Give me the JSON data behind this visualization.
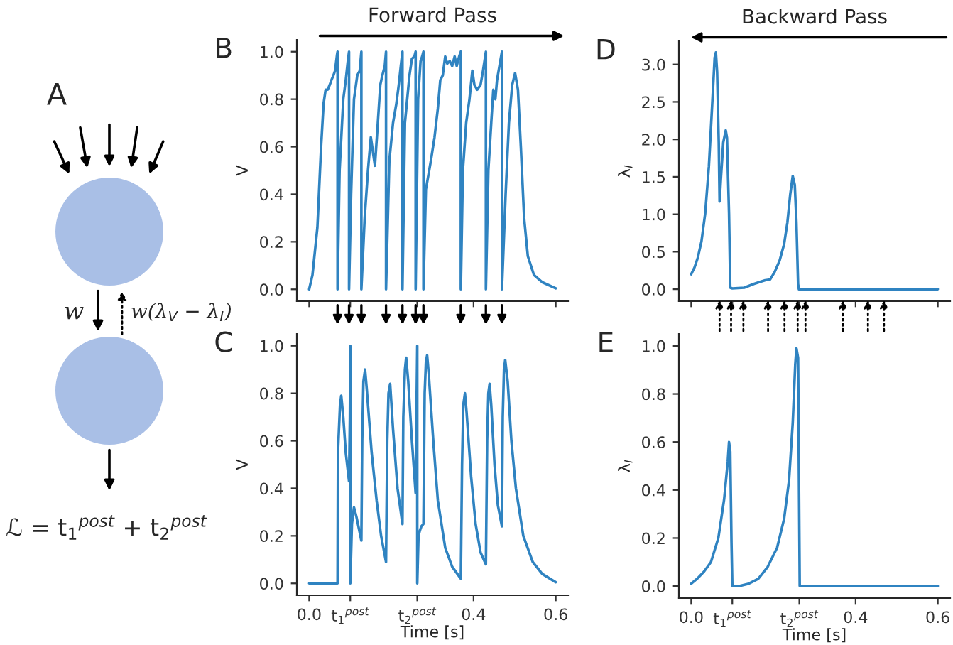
{
  "chart_data": [
    {
      "type": "other",
      "annotations": [
        "A",
        "w",
        "w(λ$_{V}$ − λ$_{I}$)",
        "ℒ = t$_{1}$$^{post}$ + t$_{2}$$^{post}$"
      ]
    },
    {
      "type": "line",
      "title": "Forward Pass",
      "ylabel": "V",
      "annotations": [
        "B"
      ],
      "color": "#2f83c1",
      "tick_labels": "y",
      "xlim": [
        -0.03,
        0.63
      ],
      "ylim": [
        -0.05,
        1.05
      ],
      "yticks": [
        {
          "value": 0,
          "label": "0.0"
        },
        0.2,
        0.4,
        0.6,
        0.8,
        {
          "value": 1,
          "label": "1.0"
        }
      ],
      "xticks": [
        {
          "value": 0.0,
          "label": null
        },
        {
          "value": 0.1,
          "label": null
        },
        {
          "value": 0.263,
          "label": null
        },
        {
          "value": 0.4,
          "label": null
        },
        {
          "value": 0.6,
          "label": null
        }
      ],
      "x": [
        0,
        0.008,
        0.02,
        0.029,
        0.035,
        0.04,
        0.045,
        0.05,
        0.054,
        0.059,
        0.063,
        0.068,
        0.069,
        0.069,
        0.074,
        0.083,
        0.089,
        0.094,
        0.097,
        0.097,
        0.102,
        0.109,
        0.117,
        0.123,
        0.127,
        0.127,
        0.135,
        0.143,
        0.15,
        0.155,
        0.16,
        0.167,
        0.173,
        0.178,
        0.184,
        0.187,
        0.187,
        0.195,
        0.204,
        0.212,
        0.218,
        0.223,
        0.227,
        0.227,
        0.233,
        0.244,
        0.25,
        0.256,
        0.259,
        0.259,
        0.265,
        0.271,
        0.275,
        0.278,
        0.278,
        0.284,
        0.296,
        0.305,
        0.313,
        0.319,
        0.325,
        0.331,
        0.336,
        0.342,
        0.348,
        0.354,
        0.359,
        0.365,
        0.369,
        0.369,
        0.374,
        0.382,
        0.39,
        0.397,
        0.402,
        0.409,
        0.417,
        0.423,
        0.43,
        0.43,
        0.436,
        0.443,
        0.448,
        0.453,
        0.457,
        0.463,
        0.469,
        0.469,
        0.478,
        0.486,
        0.494,
        0.501,
        0.508,
        0.515,
        0.523,
        0.532,
        0.547,
        0.567,
        0.6
      ],
      "values": [
        0,
        0.06,
        0.26,
        0.6,
        0.78,
        0.84,
        0.84,
        0.86,
        0.88,
        0.9,
        0.92,
        0.99,
        1.0,
        0,
        0.5,
        0.8,
        0.88,
        0.96,
        1.0,
        0,
        0.4,
        0.8,
        0.9,
        0.92,
        1.0,
        0,
        0.3,
        0.5,
        0.64,
        0.58,
        0.52,
        0.7,
        0.86,
        0.9,
        0.94,
        1.0,
        0,
        0.54,
        0.7,
        0.78,
        0.86,
        0.94,
        1.0,
        0,
        0.7,
        0.9,
        0.97,
        0.98,
        1.0,
        0,
        0.8,
        0.96,
        0.98,
        1.0,
        0,
        0.42,
        0.54,
        0.64,
        0.76,
        0.88,
        0.9,
        0.98,
        0.95,
        0.96,
        0.94,
        0.98,
        0.94,
        0.98,
        1.0,
        0,
        0.5,
        0.7,
        0.8,
        0.92,
        0.86,
        0.84,
        0.86,
        0.92,
        1.0,
        0,
        0.5,
        0.7,
        0.84,
        0.8,
        0.88,
        0.94,
        1.0,
        0,
        0.4,
        0.7,
        0.86,
        0.91,
        0.84,
        0.6,
        0.3,
        0.14,
        0.06,
        0.03,
        0.004
      ]
    },
    {
      "type": "line",
      "xlabel": "Time [s]",
      "ylabel": "V",
      "annotations": [
        "C",
        "t$_{1}$$^{post}$",
        "t$_{2}$$^{post}$"
      ],
      "color": "#2f83c1",
      "xlim": [
        -0.03,
        0.63
      ],
      "ylim": [
        -0.05,
        1.05
      ],
      "yticks": [
        {
          "value": 0,
          "label": "0.0"
        },
        0.2,
        0.4,
        0.6,
        0.8,
        {
          "value": 1,
          "label": "1.0"
        }
      ],
      "xticks": [
        {
          "value": 0,
          "label": "0.0"
        },
        {
          "value": 0.1,
          "label": null
        },
        {
          "value": 0.263,
          "label": null
        },
        {
          "value": 0.4,
          "label": "0.4"
        },
        {
          "value": 0.6,
          "label": "0.6"
        }
      ],
      "x": [
        0,
        0.069,
        0.07,
        0.075,
        0.078,
        0.083,
        0.089,
        0.097,
        0.099,
        0.1,
        0.1,
        0.104,
        0.109,
        0.115,
        0.127,
        0.129,
        0.132,
        0.136,
        0.14,
        0.152,
        0.164,
        0.175,
        0.187,
        0.19,
        0.193,
        0.197,
        0.204,
        0.215,
        0.227,
        0.229,
        0.233,
        0.236,
        0.241,
        0.25,
        0.259,
        0.261,
        0.263,
        0.263,
        0.266,
        0.269,
        0.273,
        0.278,
        0.281,
        0.284,
        0.287,
        0.291,
        0.302,
        0.313,
        0.331,
        0.348,
        0.369,
        0.372,
        0.375,
        0.379,
        0.383,
        0.394,
        0.405,
        0.417,
        0.43,
        0.433,
        0.436,
        0.439,
        0.443,
        0.451,
        0.459,
        0.469,
        0.471,
        0.474,
        0.477,
        0.483,
        0.492,
        0.503,
        0.521,
        0.544,
        0.567,
        0.6
      ],
      "values": [
        0,
        0,
        0.55,
        0.75,
        0.79,
        0.7,
        0.55,
        0.43,
        0.7,
        1.0,
        0,
        0.25,
        0.32,
        0.28,
        0.18,
        0.6,
        0.85,
        0.9,
        0.82,
        0.55,
        0.35,
        0.2,
        0.09,
        0.6,
        0.8,
        0.84,
        0.65,
        0.4,
        0.25,
        0.7,
        0.9,
        0.95,
        0.85,
        0.6,
        0.38,
        0.7,
        1.0,
        0,
        0.2,
        0.22,
        0.24,
        0.25,
        0.8,
        0.93,
        0.96,
        0.88,
        0.6,
        0.35,
        0.15,
        0.07,
        0.02,
        0.5,
        0.75,
        0.8,
        0.72,
        0.45,
        0.25,
        0.13,
        0.08,
        0.6,
        0.8,
        0.84,
        0.75,
        0.5,
        0.33,
        0.24,
        0.7,
        0.9,
        0.94,
        0.85,
        0.6,
        0.4,
        0.2,
        0.09,
        0.04,
        0.005
      ]
    },
    {
      "type": "line",
      "title": "Backward Pass",
      "ylabel": "λ$_{I}$",
      "annotations": [
        "D"
      ],
      "color": "#2f83c1",
      "tick_labels": "y",
      "xlim": [
        -0.03,
        0.63
      ],
      "ylim": [
        -0.16,
        3.31
      ],
      "yticks": [
        {
          "value": 0,
          "label": "0.0"
        },
        0.5,
        {
          "value": 1,
          "label": "1.0"
        },
        1.5,
        {
          "value": 2,
          "label": "2.0"
        },
        2.5,
        {
          "value": 3,
          "label": "3.0"
        }
      ],
      "xticks": [
        {
          "value": 0.0,
          "label": null
        },
        {
          "value": 0.1,
          "label": null
        },
        {
          "value": 0.263,
          "label": null
        },
        {
          "value": 0.4,
          "label": null
        },
        {
          "value": 0.6,
          "label": null
        }
      ],
      "x": [
        0,
        0.008,
        0.016,
        0.025,
        0.034,
        0.043,
        0.051,
        0.057,
        0.06,
        0.063,
        0.067,
        0.069,
        0.072,
        0.078,
        0.084,
        0.087,
        0.092,
        0.095,
        0.1,
        0.129,
        0.152,
        0.169,
        0.18,
        0.192,
        0.203,
        0.215,
        0.226,
        0.234,
        0.241,
        0.247,
        0.252,
        0.256,
        0.26,
        0.262,
        0.6
      ],
      "values": [
        0.2,
        0.29,
        0.42,
        0.64,
        1.01,
        1.64,
        2.46,
        3.09,
        3.16,
        2.9,
        1.96,
        1.17,
        1.46,
        1.96,
        2.12,
        2.02,
        1.01,
        0.02,
        0.01,
        0.02,
        0.07,
        0.1,
        0.12,
        0.13,
        0.23,
        0.38,
        0.6,
        0.89,
        1.27,
        1.51,
        1.39,
        0.89,
        0.07,
        0,
        0
      ]
    },
    {
      "type": "line",
      "xlabel": "Time [s]",
      "ylabel": "λ$_{I}$",
      "annotations": [
        "E",
        "t$_{1}$$^{post}$",
        "t$_{2}$$^{post}$"
      ],
      "color": "#2f83c1",
      "xlim": [
        -0.03,
        0.63
      ],
      "ylim": [
        -0.05,
        1.05
      ],
      "yticks": [
        {
          "value": 0,
          "label": "0.0"
        },
        0.2,
        0.4,
        0.6,
        0.8,
        {
          "value": 1,
          "label": "1.0"
        }
      ],
      "xticks": [
        {
          "value": 0,
          "label": "0.0"
        },
        {
          "value": 0.1,
          "label": null
        },
        {
          "value": 0.263,
          "label": null
        },
        {
          "value": 0.4,
          "label": "0.4"
        },
        {
          "value": 0.6,
          "label": "0.6"
        }
      ],
      "x": [
        0,
        0.014,
        0.031,
        0.048,
        0.066,
        0.08,
        0.089,
        0.092,
        0.095,
        0.098,
        0.1,
        0.117,
        0.14,
        0.163,
        0.186,
        0.209,
        0.226,
        0.238,
        0.247,
        0.253,
        0.256,
        0.26,
        0.262,
        0.264,
        0.6
      ],
      "values": [
        0.01,
        0.03,
        0.06,
        0.1,
        0.2,
        0.36,
        0.52,
        0.6,
        0.56,
        0.18,
        0,
        0,
        0.01,
        0.03,
        0.08,
        0.16,
        0.28,
        0.44,
        0.68,
        0.92,
        0.99,
        0.95,
        0.48,
        0,
        0
      ]
    }
  ]
}
